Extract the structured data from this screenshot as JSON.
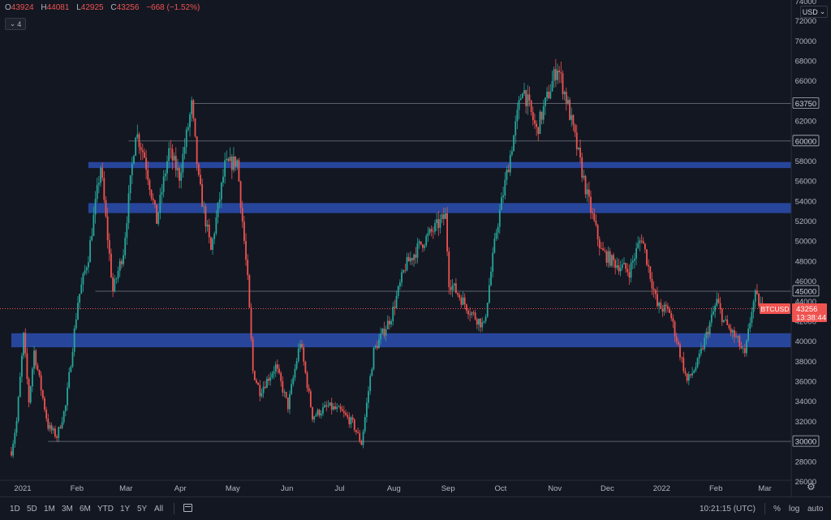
{
  "ohlc": {
    "o_label": "O",
    "o": "43924",
    "h_label": "H",
    "h": "44081",
    "l_label": "L",
    "l": "42925",
    "c_label": "C",
    "c": "43256",
    "change": "−668 (−1.52%)"
  },
  "indicator_toggle": {
    "count": "4"
  },
  "currency": "USD",
  "price_axis": {
    "top_partial": "74000",
    "ticks": [
      72000,
      70000,
      68000,
      66000,
      64000,
      62000,
      60000,
      58000,
      56000,
      54000,
      52000,
      50000,
      48000,
      46000,
      44000,
      42000,
      40000,
      38000,
      36000,
      34000,
      32000,
      30000,
      28000,
      26000
    ]
  },
  "time_axis": {
    "labels": [
      "2021",
      "Feb",
      "Mar",
      "Apr",
      "May",
      "Jun",
      "Jul",
      "Aug",
      "Sep",
      "Oct",
      "Nov",
      "Dec",
      "2022",
      "Feb",
      "Mar"
    ]
  },
  "chart_data": {
    "type": "candlestick",
    "title": "",
    "symbol": "BTCUSD",
    "last_price": "43256",
    "countdown": "13:38:44",
    "x_range": [
      "2021-01-01",
      "2022-03-10"
    ],
    "y_range": [
      24500,
      74000
    ],
    "y_scale": "linear",
    "grid": false,
    "up_color": "#26a69a",
    "down_color": "#ef5350",
    "horizontal_levels": [
      {
        "price": 63750,
        "label": "63750",
        "from": "2021-04-14"
      },
      {
        "price": 60000,
        "label": "60000",
        "from": "2021-03-09"
      },
      {
        "price": 45000,
        "label": "45000",
        "from": "2021-02-18"
      },
      {
        "price": 30000,
        "label": "30000",
        "from": "2021-01-22"
      }
    ],
    "zones": [
      {
        "low": 57300,
        "high": 57900,
        "from": "2021-02-14",
        "color": "#2a4aa8"
      },
      {
        "low": 52800,
        "high": 53800,
        "from": "2021-02-14",
        "color": "#2a4aa8"
      },
      {
        "low": 39400,
        "high": 40800,
        "from": "2021-01-01",
        "color": "#2a4aa8"
      }
    ],
    "price_path": [
      [
        "2021-01-01",
        29000
      ],
      [
        "2021-01-04",
        32000
      ],
      [
        "2021-01-08",
        40500
      ],
      [
        "2021-01-11",
        34000
      ],
      [
        "2021-01-14",
        39000
      ],
      [
        "2021-01-22",
        31500
      ],
      [
        "2021-01-27",
        30500
      ],
      [
        "2021-02-01",
        33500
      ],
      [
        "2021-02-08",
        44000
      ],
      [
        "2021-02-14",
        48500
      ],
      [
        "2021-02-21",
        57500
      ],
      [
        "2021-02-28",
        45000
      ],
      [
        "2021-03-06",
        49000
      ],
      [
        "2021-03-13",
        61000
      ],
      [
        "2021-03-18",
        58500
      ],
      [
        "2021-03-25",
        52000
      ],
      [
        "2021-04-01",
        59000
      ],
      [
        "2021-04-07",
        56500
      ],
      [
        "2021-04-14",
        63500
      ],
      [
        "2021-04-18",
        56000
      ],
      [
        "2021-04-25",
        49000
      ],
      [
        "2021-05-03",
        57500
      ],
      [
        "2021-05-10",
        58000
      ],
      [
        "2021-05-16",
        46000
      ],
      [
        "2021-05-19",
        37000
      ],
      [
        "2021-05-23",
        35000
      ],
      [
        "2021-06-01",
        37500
      ],
      [
        "2021-06-08",
        33500
      ],
      [
        "2021-06-15",
        40000
      ],
      [
        "2021-06-22",
        32500
      ],
      [
        "2021-07-01",
        33500
      ],
      [
        "2021-07-08",
        33000
      ],
      [
        "2021-07-15",
        31800
      ],
      [
        "2021-07-20",
        29800
      ],
      [
        "2021-07-27",
        39000
      ],
      [
        "2021-08-06",
        42500
      ],
      [
        "2021-08-14",
        47500
      ],
      [
        "2021-08-22",
        49500
      ],
      [
        "2021-09-06",
        52500
      ],
      [
        "2021-09-08",
        46000
      ],
      [
        "2021-09-20",
        43000
      ],
      [
        "2021-09-28",
        41500
      ],
      [
        "2021-10-05",
        51000
      ],
      [
        "2021-10-15",
        60500
      ],
      [
        "2021-10-20",
        65500
      ],
      [
        "2021-10-28",
        61000
      ],
      [
        "2021-11-09",
        67500
      ],
      [
        "2021-11-15",
        63500
      ],
      [
        "2021-11-26",
        54500
      ],
      [
        "2021-12-04",
        49000
      ],
      [
        "2021-12-10",
        48000
      ],
      [
        "2021-12-20",
        47000
      ],
      [
        "2021-12-27",
        50500
      ],
      [
        "2022-01-05",
        43500
      ],
      [
        "2022-01-12",
        43000
      ],
      [
        "2022-01-22",
        36000
      ],
      [
        "2022-01-28",
        37800
      ],
      [
        "2022-02-08",
        44000
      ],
      [
        "2022-02-12",
        42000
      ],
      [
        "2022-02-20",
        40000
      ],
      [
        "2022-02-24",
        38500
      ],
      [
        "2022-02-28",
        43200
      ],
      [
        "2022-03-02",
        44500
      ],
      [
        "2022-03-06",
        43256
      ]
    ]
  }
}
